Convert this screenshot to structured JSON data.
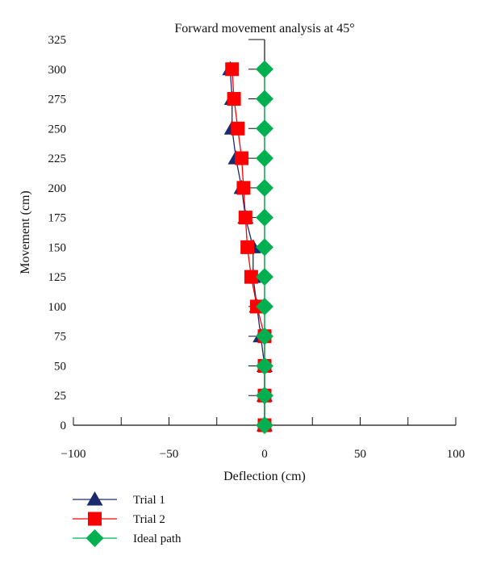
{
  "chart_data": {
    "type": "line",
    "title": "Forward movement analysis at 45°",
    "xlabel": "Deflection (cm)",
    "ylabel": "Movement (cm)",
    "xlim": [
      -100,
      100
    ],
    "ylim": [
      0,
      325
    ],
    "x_ticks": [
      -100,
      -50,
      0,
      50,
      100
    ],
    "y_ticks": [
      0,
      25,
      50,
      75,
      100,
      125,
      150,
      175,
      200,
      225,
      250,
      275,
      300,
      325
    ],
    "x_tick_labels": [
      "−100",
      "−50",
      "0",
      "50",
      "100"
    ],
    "y_tick_labels": [
      "0",
      "25",
      "50",
      "75",
      "100",
      "125",
      "150",
      "175",
      "200",
      "225",
      "250",
      "275",
      "300",
      "325"
    ],
    "legend_position": "bottom-left",
    "series": [
      {
        "name": "Trial 1",
        "color": "#1a2a6c",
        "marker": "triangle",
        "points": [
          [
            0,
            0
          ],
          [
            0,
            25
          ],
          [
            0,
            50
          ],
          [
            -2,
            75
          ],
          [
            -4,
            100
          ],
          [
            -6,
            125
          ],
          [
            -6,
            150
          ],
          [
            -10,
            175
          ],
          [
            -12,
            200
          ],
          [
            -15,
            225
          ],
          [
            -17,
            250
          ],
          [
            -17,
            275
          ],
          [
            -18,
            300
          ]
        ]
      },
      {
        "name": "Trial 2",
        "color": "#ff0000",
        "marker": "square",
        "points": [
          [
            0,
            0
          ],
          [
            0,
            25
          ],
          [
            0,
            50
          ],
          [
            0,
            75
          ],
          [
            -4,
            100
          ],
          [
            -7,
            125
          ],
          [
            -9,
            150
          ],
          [
            -10,
            175
          ],
          [
            -11,
            200
          ],
          [
            -12,
            225
          ],
          [
            -14,
            250
          ],
          [
            -16,
            275
          ],
          [
            -17,
            300
          ]
        ]
      },
      {
        "name": "Ideal path",
        "color": "#00b050",
        "marker": "diamond",
        "points": [
          [
            0,
            0
          ],
          [
            0,
            25
          ],
          [
            0,
            50
          ],
          [
            0,
            75
          ],
          [
            0,
            100
          ],
          [
            0,
            125
          ],
          [
            0,
            150
          ],
          [
            0,
            175
          ],
          [
            0,
            200
          ],
          [
            0,
            225
          ],
          [
            0,
            250
          ],
          [
            0,
            275
          ],
          [
            0,
            300
          ]
        ]
      }
    ]
  }
}
